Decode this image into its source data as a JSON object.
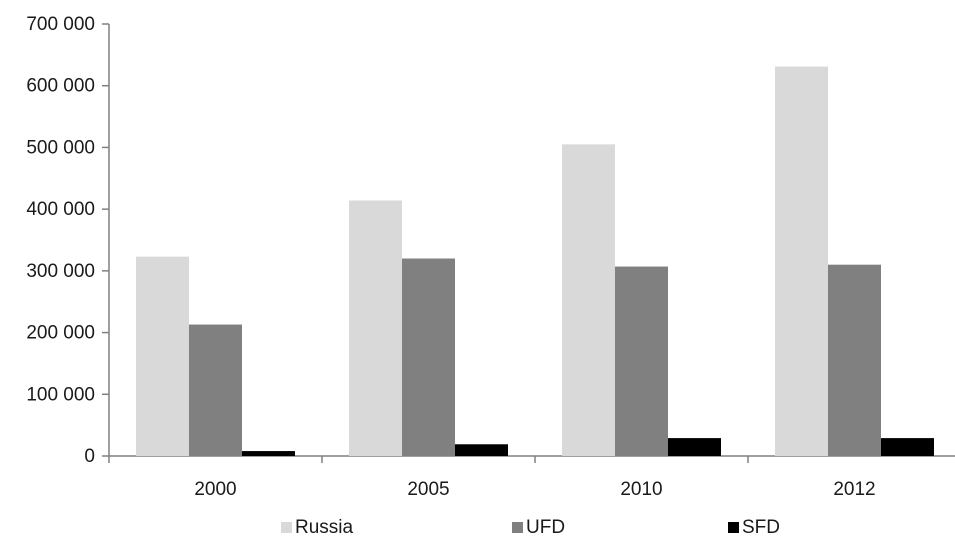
{
  "chart_data": {
    "type": "bar",
    "title": "",
    "xlabel": "",
    "ylabel": "",
    "categories": [
      "2000",
      "2005",
      "2010",
      "2012"
    ],
    "series": [
      {
        "name": "Russia",
        "color": "#d9d9d9",
        "values": [
          323000,
          414000,
          505000,
          631000
        ]
      },
      {
        "name": "UFD",
        "color": "#808080",
        "values": [
          213000,
          320000,
          307000,
          310000
        ]
      },
      {
        "name": "SFD",
        "color": "#000000",
        "values": [
          8000,
          19000,
          29000,
          29000
        ]
      }
    ],
    "ylim": [
      0,
      700000
    ],
    "yticks": [
      0,
      100000,
      200000,
      300000,
      400000,
      500000,
      600000,
      700000
    ],
    "ytick_labels": [
      "0",
      "100 000",
      "200 000",
      "300 000",
      "400 000",
      "500 000",
      "600 000",
      "700 000"
    ],
    "grid": false,
    "legend_position": "bottom"
  }
}
